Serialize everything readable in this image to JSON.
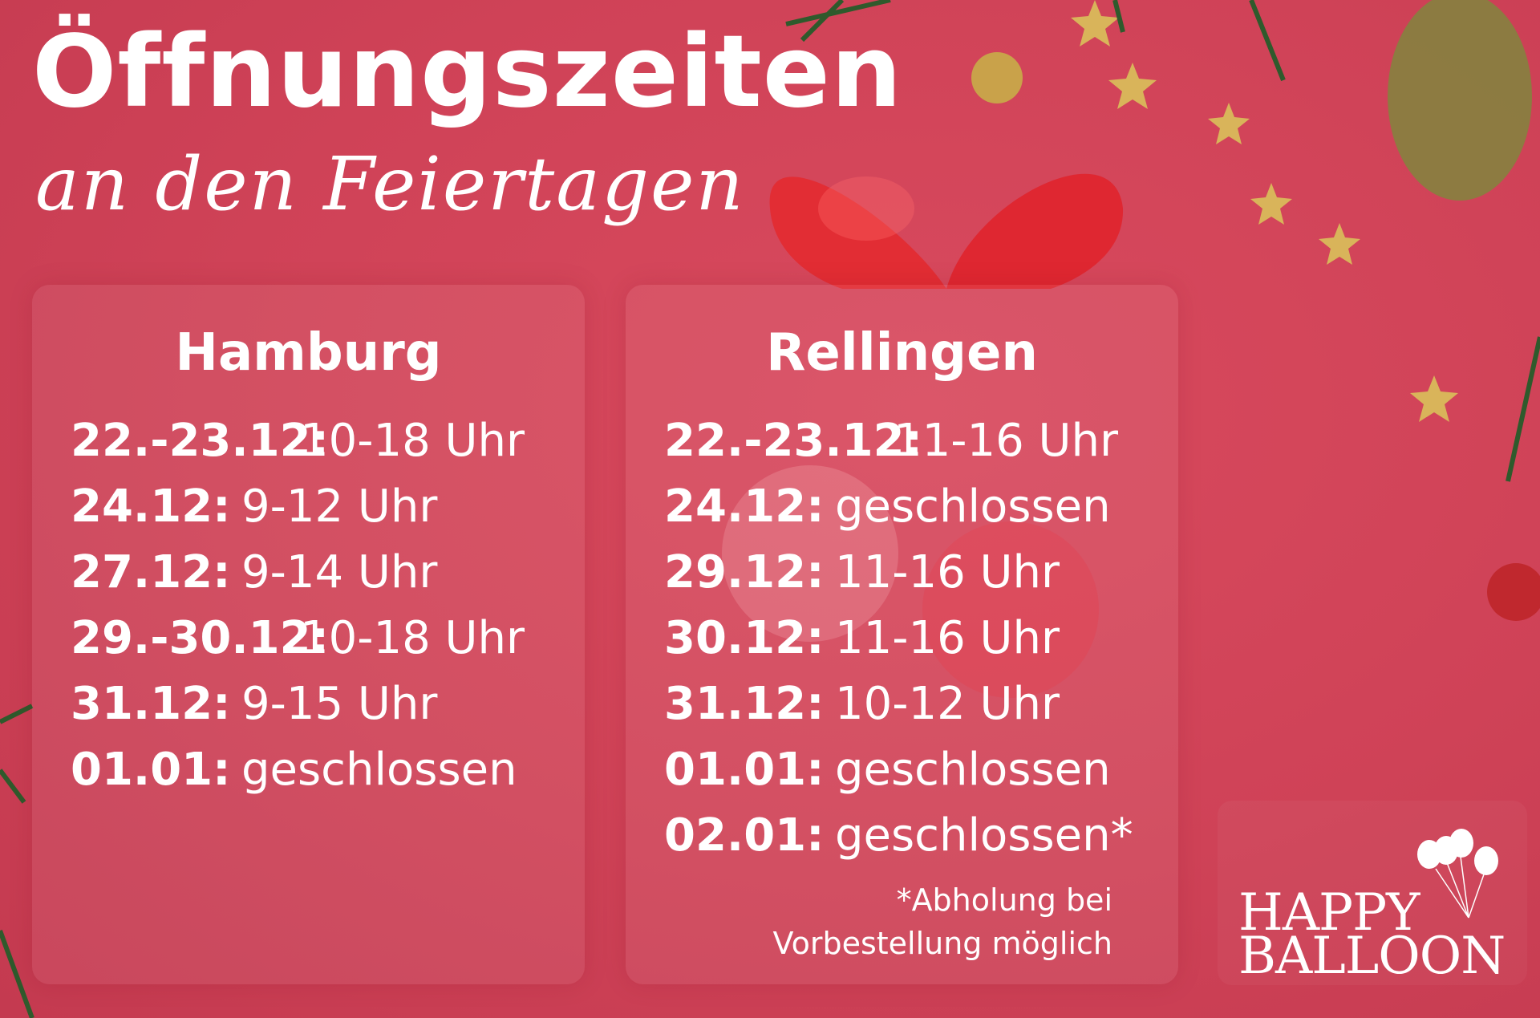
{
  "header": {
    "title": "Öffnungszeiten",
    "subtitle": "an den Feiertagen"
  },
  "locations": [
    {
      "name": "Hamburg",
      "hours": [
        {
          "date": "22.-23.12:",
          "time": "10-18 Uhr"
        },
        {
          "date": "24.12:",
          "time": "9-12 Uhr"
        },
        {
          "date": "27.12:",
          "time": "9-14 Uhr"
        },
        {
          "date": "29.-30.12:",
          "time": "10-18 Uhr"
        },
        {
          "date": "31.12:",
          "time": "9-15 Uhr"
        },
        {
          "date": "01.01:",
          "time": "geschlossen"
        }
      ]
    },
    {
      "name": "Rellingen",
      "hours": [
        {
          "date": "22.-23.12:",
          "time": "11-16 Uhr"
        },
        {
          "date": "24.12:",
          "time": "geschlossen"
        },
        {
          "date": "29.12:",
          "time": "11-16 Uhr"
        },
        {
          "date": "30.12:",
          "time": "11-16 Uhr"
        },
        {
          "date": "31.12:",
          "time": "10-12 Uhr"
        },
        {
          "date": "01.01:",
          "time": "geschlossen"
        },
        {
          "date": "02.01:",
          "time": "geschlossen*"
        }
      ],
      "footnote": [
        "*Abholung bei",
        "Vorbestellung möglich"
      ]
    }
  ],
  "logo": {
    "line1": "HAPPY",
    "line2": "BALLOON"
  },
  "colors": {
    "background": "#cf4257",
    "text": "#ffffff",
    "accent_gold": "#d9b45a",
    "balloon_red": "#e0202a"
  }
}
